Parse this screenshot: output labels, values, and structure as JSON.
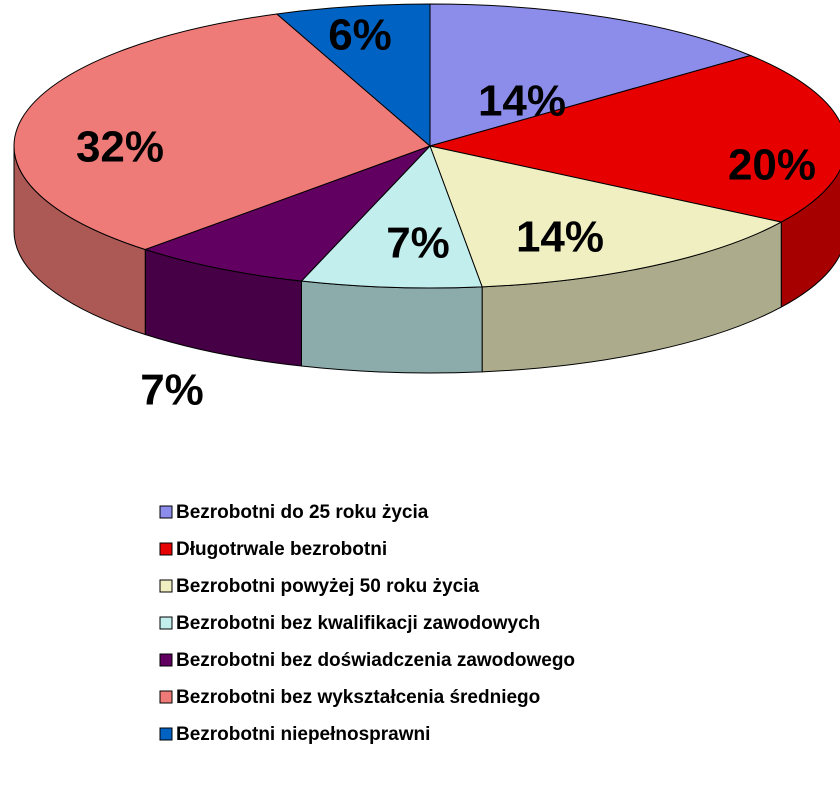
{
  "chart_data": {
    "type": "pie3d",
    "categories": [
      "Bezrobotni do 25 roku życia",
      "Długotrwale bezrobotni",
      "Bezrobotni powyżej 50 roku życia",
      "Bezrobotni bez kwalifikacji zawodowych",
      "Bezrobotni bez doświadczenia zawodowego",
      "Bezrobotni bez wykształcenia średniego",
      "Bezrobotni niepełnosprawni"
    ],
    "values": [
      14,
      20,
      14,
      7,
      7,
      32,
      6
    ],
    "value_labels": [
      "14%",
      "20%",
      "14%",
      "7%",
      "7%",
      "32%",
      "6%"
    ],
    "colors": [
      "#8c8ceb",
      "#e60000",
      "#efefc2",
      "#c2eeee",
      "#610061",
      "#ef7b78",
      "#0062c2"
    ],
    "legend": "bottom"
  }
}
